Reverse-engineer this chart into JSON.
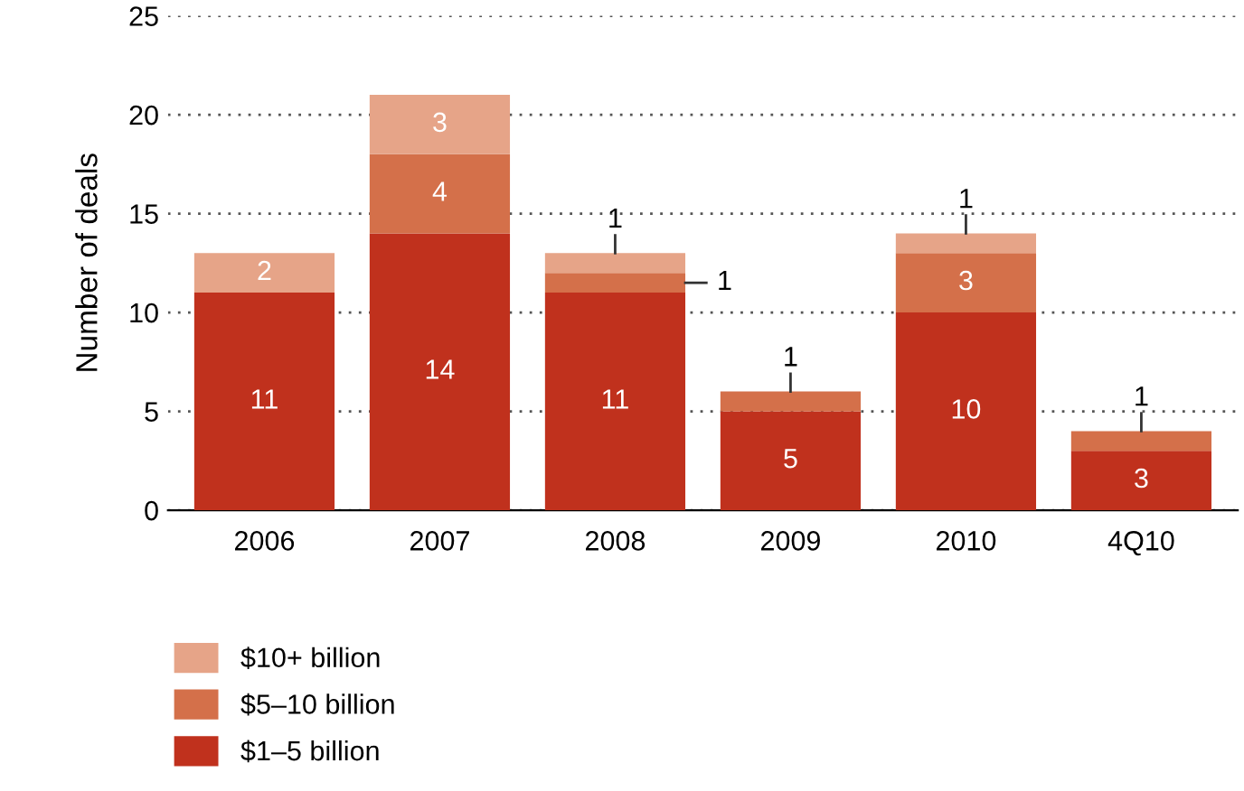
{
  "chart_data": {
    "type": "bar",
    "stacked": true,
    "ylabel": "Number of deals",
    "categories": [
      "2006",
      "2007",
      "2008",
      "2009",
      "2010",
      "4Q10"
    ],
    "series": [
      {
        "name": "$1–5 billion",
        "color": "#c0311d",
        "values": [
          11,
          14,
          11,
          5,
          10,
          3
        ],
        "value_labels": [
          "11",
          "14",
          "11",
          "5",
          "10",
          "3"
        ]
      },
      {
        "name": "$5–10 billion",
        "color": "#d4704a",
        "values": [
          0,
          4,
          1,
          1,
          3,
          1
        ],
        "value_labels": [
          null,
          "4",
          "1",
          "1",
          "3",
          "1"
        ]
      },
      {
        "name": "$10+ billion",
        "color": "#e6a488",
        "values": [
          2,
          3,
          1,
          0,
          1,
          0
        ],
        "value_labels": [
          "2",
          "3",
          "1",
          null,
          "1",
          null
        ]
      }
    ],
    "ylim": [
      0,
      25
    ],
    "yticks": [
      0,
      5,
      10,
      15,
      20,
      25
    ],
    "grid": "y",
    "legend": "bottom left"
  }
}
